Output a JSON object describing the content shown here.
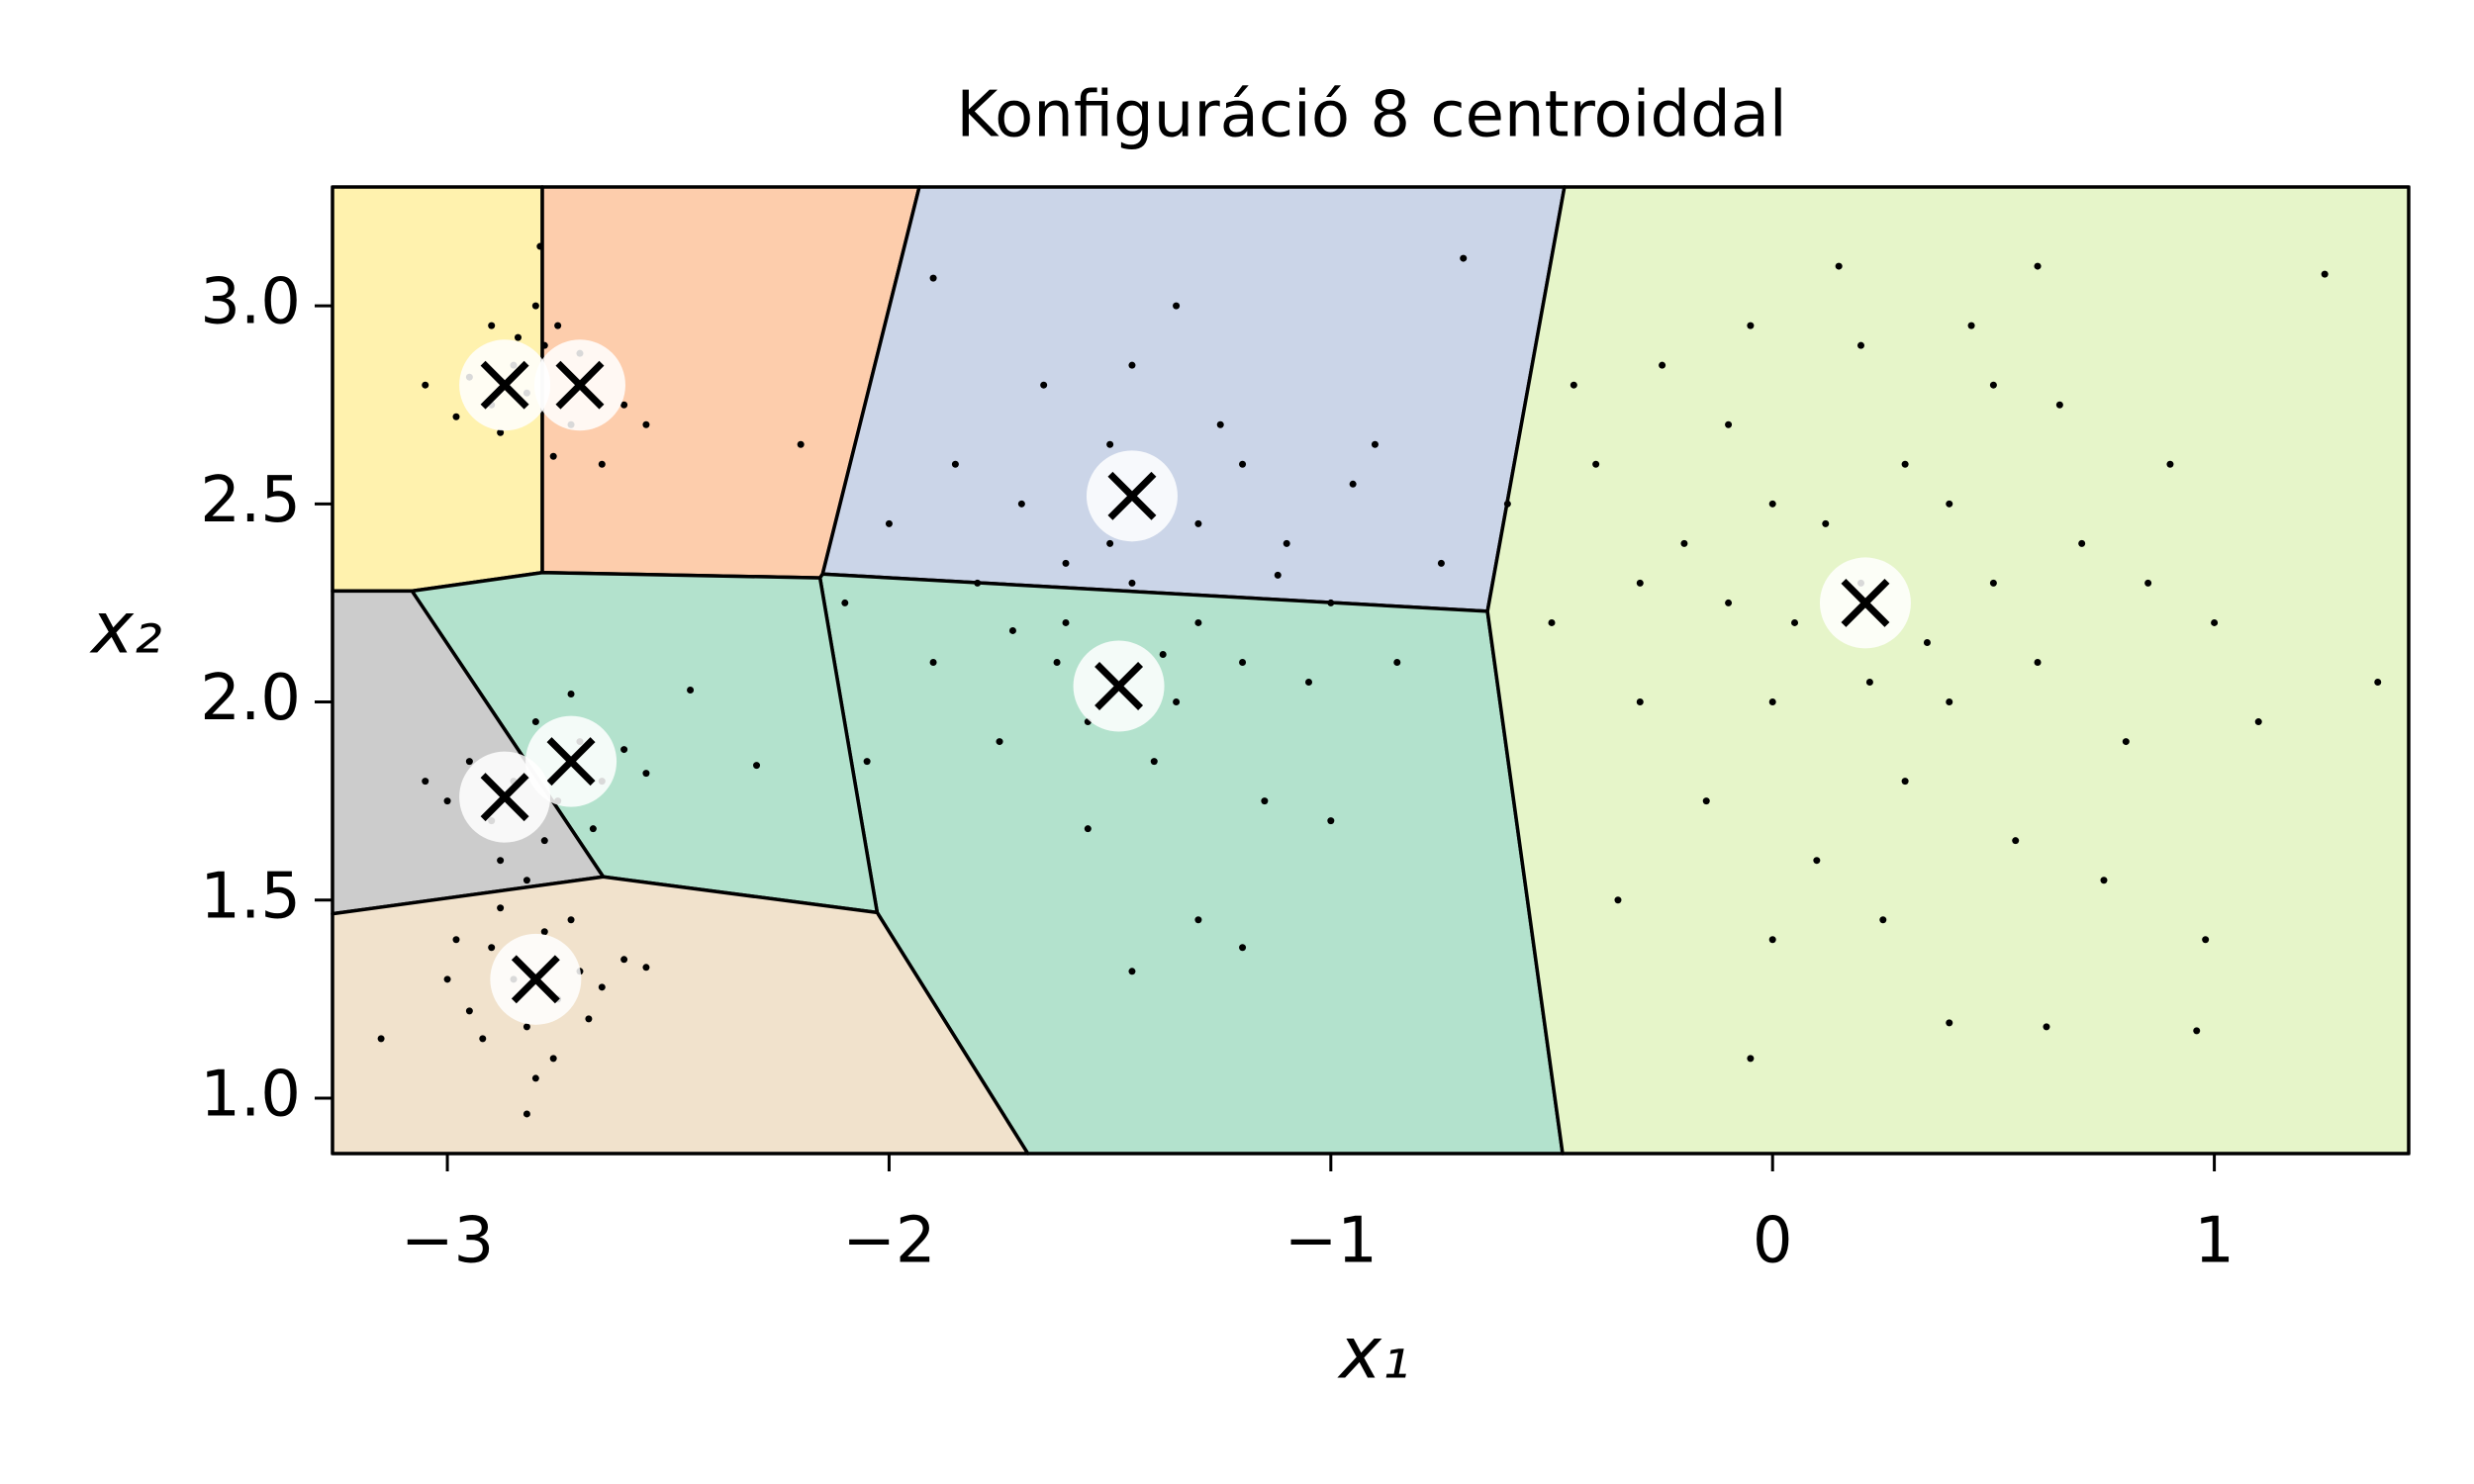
{
  "chart_data": {
    "type": "voronoi-scatter",
    "title": "Konfiguráció 8 centroiddal",
    "x_label": "x₁",
    "y_label": "x₂",
    "xlim": [
      -3.26,
      1.44
    ],
    "ylim": [
      0.86,
      3.3
    ],
    "xticks": [
      {
        "value": -3,
        "label": "−3"
      },
      {
        "value": -2,
        "label": "−2"
      },
      {
        "value": -1,
        "label": "−1"
      },
      0,
      1
    ],
    "yticks": [
      {
        "value": 1.0,
        "label": "1.0"
      },
      1.5,
      {
        "value": 2.0,
        "label": "2.0"
      },
      2.5,
      {
        "value": 3.0,
        "label": "3.0"
      }
    ],
    "centroids": {
      "x": [
        -2.87,
        -2.7,
        -1.45,
        -1.48,
        0.21,
        -2.72,
        -2.87,
        -2.8
      ],
      "y": [
        2.8,
        2.8,
        2.52,
        2.04,
        2.25,
        1.85,
        1.76,
        1.3
      ]
    },
    "region_colors": [
      "#fff2ae",
      "#fdcdac",
      "#cbd5e8",
      "#b3e2cd",
      "#e6f5c9",
      "#b3e2cd",
      "#cccccc",
      "#f1e2cc"
    ],
    "boundary_color": "#000000",
    "point_color": "#000000",
    "points": {
      "x": [
        -2.85,
        -2.78,
        -2.9,
        -2.72,
        -2.82,
        -2.95,
        -2.75,
        -2.68,
        -2.88,
        -2.8,
        -2.6,
        -2.98,
        -2.76,
        -2.84,
        -2.7,
        -2.55,
        -3.05,
        -2.79,
        -2.9,
        -2.65,
        -2.85,
        -2.75,
        -2.9,
        -2.78,
        -2.7,
        -2.95,
        -2.82,
        -2.65,
        -2.88,
        -2.76,
        -3.0,
        -2.6,
        -2.8,
        -2.92,
        -2.72,
        -3.15,
        -2.55,
        -2.82,
        -2.68,
        -2.98,
        -2.85,
        -2.75,
        -2.9,
        -2.7,
        -2.8,
        -2.95,
        -2.65,
        -2.78,
        -2.88,
        -2.6,
        -3.0,
        -2.72,
        -2.55,
        -3.05,
        -2.82,
        -2.45,
        -2.3,
        -2.67,
        -1.45,
        -1.3,
        -1.6,
        -1.2,
        -1.7,
        -1.5,
        -1.35,
        -1.8,
        -1.1,
        -1.55,
        -1.25,
        -1.9,
        -1.0,
        -1.65,
        -1.4,
        -2.0,
        -0.95,
        -1.75,
        -1.15,
        -1.5,
        -1.3,
        -1.62,
        -1.05,
        -2.1,
        -0.85,
        -1.45,
        -1.2,
        -1.85,
        -1.55,
        -1.0,
        -1.3,
        -1.2,
        -1.45,
        -0.9,
        -1.9,
        -1.35,
        -2.2,
        -2.05,
        -0.7,
        -0.75,
        -1.6,
        -1.38,
        -1.72,
        -1.12,
        0.2,
        0.0,
        0.4,
        -0.2,
        0.6,
        0.3,
        -0.1,
        0.5,
        0.1,
        -0.3,
        0.7,
        0.2,
        -0.4,
        0.8,
        0.0,
        0.35,
        -0.15,
        0.55,
        0.9,
        -0.5,
        0.15,
        0.25,
        -0.35,
        1.0,
        0.45,
        -0.05,
        0.65,
        -0.25,
        0.05,
        0.4,
        0.75,
        -0.6,
        1.1,
        0.6,
        0.0,
        1.25,
        1.37,
        0.98,
        0.96,
        -0.05,
        0.62,
        0.4,
        -0.45,
        0.3,
        0.12,
        0.5,
        -0.1,
        0.22,
        0.85,
        -0.3
      ],
      "y": [
        2.85,
        2.9,
        2.75,
        2.7,
        2.78,
        2.82,
        2.95,
        2.82,
        2.68,
        3.0,
        2.75,
        2.72,
        2.62,
        2.92,
        2.88,
        2.7,
        2.8,
        3.15,
        2.95,
        2.6,
        1.3,
        1.25,
        1.38,
        1.42,
        1.32,
        1.22,
        1.18,
        1.28,
        1.48,
        1.1,
        1.3,
        1.35,
        1.05,
        1.15,
        1.45,
        1.15,
        1.33,
        0.96,
        1.2,
        1.4,
        1.8,
        1.75,
        1.7,
        1.9,
        1.95,
        1.85,
        1.8,
        1.65,
        1.6,
        1.88,
        1.75,
        2.02,
        1.82,
        1.8,
        1.55,
        2.03,
        1.84,
        1.68,
        2.3,
        2.45,
        2.2,
        2.1,
        2.5,
        2.65,
        2.0,
        2.3,
        2.4,
        1.95,
        2.7,
        2.1,
        2.25,
        2.8,
        1.85,
        2.45,
        2.55,
        1.9,
        1.75,
        2.4,
        2.2,
        2.1,
        2.05,
        2.25,
        2.1,
        2.85,
        2.6,
        2.6,
        1.68,
        1.7,
        1.45,
        1.38,
        1.32,
        2.65,
        3.07,
        3.0,
        2.65,
        1.85,
        3.12,
        2.35,
        2.35,
        2.12,
        2.18,
        2.32,
        2.3,
        2.0,
        2.5,
        2.4,
        2.1,
        1.8,
        2.7,
        2.8,
        1.6,
        2.0,
        2.4,
        2.9,
        2.6,
        1.9,
        2.5,
        2.15,
        1.75,
        1.65,
        2.6,
        2.2,
        3.1,
        1.45,
        1.5,
        2.2,
        2.95,
        2.95,
        2.75,
        2.85,
        2.2,
        2.0,
        1.55,
        2.5,
        1.95,
        3.1,
        1.4,
        3.08,
        2.05,
        1.4,
        1.17,
        1.1,
        1.18,
        1.19,
        2.8,
        2.6,
        2.45,
        2.3,
        2.25,
        2.05,
        2.3,
        2.3
      ]
    }
  }
}
